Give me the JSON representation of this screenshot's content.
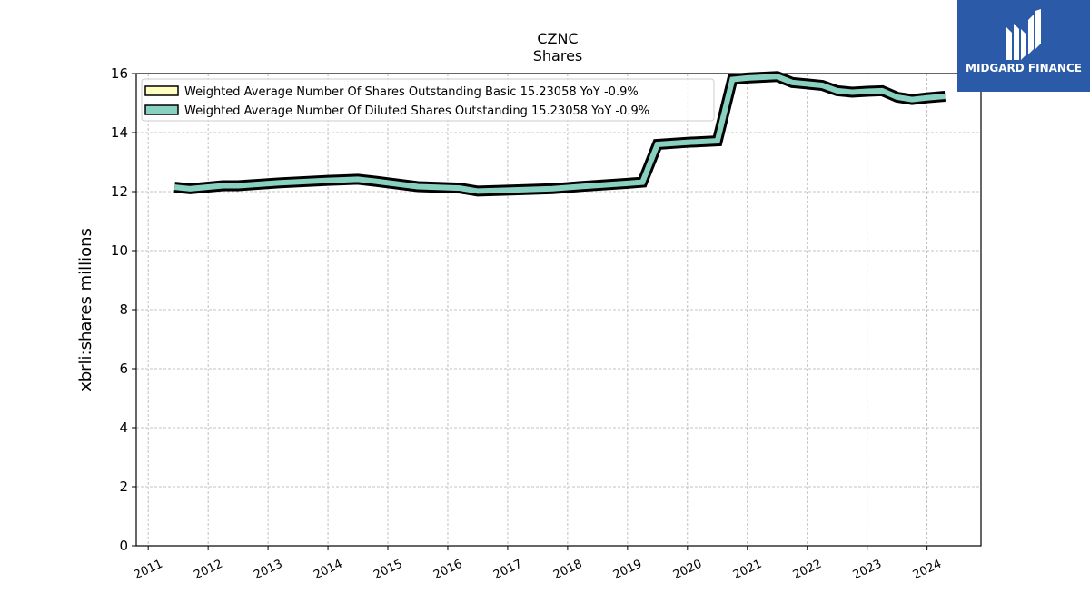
{
  "brand": {
    "name": "MIDGARD FINANCE",
    "bg_color": "#2a5aa8"
  },
  "chart_data": {
    "type": "line",
    "title": "CZNC",
    "subtitle": "Shares",
    "xlabel": "",
    "ylabel": "xbrli:shares millions",
    "xlim": [
      2010.8,
      2024.9
    ],
    "ylim": [
      0,
      16
    ],
    "yticks": [
      0,
      2,
      4,
      6,
      8,
      10,
      12,
      14,
      16
    ],
    "xticks": [
      "2011",
      "2012",
      "2013",
      "2014",
      "2015",
      "2016",
      "2017",
      "2018",
      "2019",
      "2020",
      "2021",
      "2022",
      "2023",
      "2024"
    ],
    "grid": true,
    "legend_position": "top-left",
    "series": [
      {
        "name": "Weighted Average Number Of Shares Outstanding Basic  15.23058 YoY -0.9%",
        "color": "#ffffc0",
        "x": [
          2011.44,
          2011.7,
          2012.25,
          2012.5,
          2013.2,
          2014.0,
          2014.5,
          2014.8,
          2015.5,
          2016.2,
          2016.5,
          2017.0,
          2017.75,
          2018.25,
          2019.0,
          2019.25,
          2019.5,
          2020.0,
          2020.5,
          2020.75,
          2021.0,
          2021.5,
          2021.75,
          2022.25,
          2022.5,
          2022.75,
          2023.0,
          2023.25,
          2023.5,
          2023.75,
          2024.0,
          2024.3
        ],
        "y": [
          12.15,
          12.1,
          12.2,
          12.2,
          12.3,
          12.38,
          12.42,
          12.35,
          12.17,
          12.12,
          12.02,
          12.05,
          12.1,
          12.18,
          12.28,
          12.32,
          13.6,
          13.67,
          13.72,
          15.8,
          15.85,
          15.9,
          15.7,
          15.6,
          15.42,
          15.37,
          15.4,
          15.42,
          15.2,
          15.12,
          15.18,
          15.23
        ]
      },
      {
        "name": "Weighted Average Number Of Diluted Shares Outstanding  15.23058 YoY -0.9%",
        "color": "#88d1c1",
        "x": [
          2011.44,
          2011.7,
          2012.25,
          2012.5,
          2013.2,
          2014.0,
          2014.5,
          2014.8,
          2015.5,
          2016.2,
          2016.5,
          2017.0,
          2017.75,
          2018.25,
          2019.0,
          2019.25,
          2019.5,
          2020.0,
          2020.5,
          2020.75,
          2021.0,
          2021.5,
          2021.75,
          2022.25,
          2022.5,
          2022.75,
          2023.0,
          2023.25,
          2023.5,
          2023.75,
          2024.0,
          2024.3
        ],
        "y": [
          12.15,
          12.1,
          12.2,
          12.2,
          12.3,
          12.38,
          12.42,
          12.35,
          12.17,
          12.12,
          12.02,
          12.05,
          12.1,
          12.18,
          12.28,
          12.32,
          13.6,
          13.67,
          13.72,
          15.8,
          15.85,
          15.9,
          15.7,
          15.6,
          15.42,
          15.37,
          15.4,
          15.42,
          15.2,
          15.12,
          15.18,
          15.23
        ]
      }
    ]
  }
}
